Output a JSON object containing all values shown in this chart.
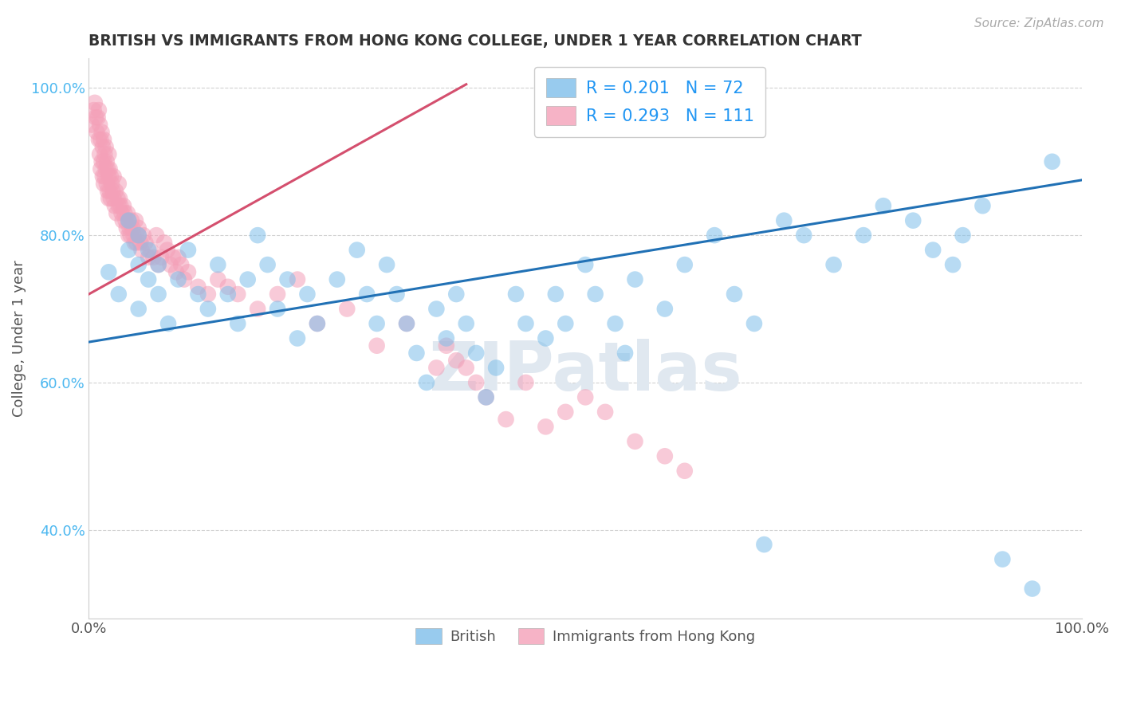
{
  "title": "BRITISH VS IMMIGRANTS FROM HONG KONG COLLEGE, UNDER 1 YEAR CORRELATION CHART",
  "source_text": "Source: ZipAtlas.com",
  "ylabel": "College, Under 1 year",
  "x_min": 0.0,
  "x_max": 1.0,
  "y_min": 0.28,
  "y_max": 1.04,
  "y_ticks": [
    0.4,
    0.6,
    0.8,
    1.0
  ],
  "y_tick_labels": [
    "40.0%",
    "60.0%",
    "80.0%",
    "100.0%"
  ],
  "british_R": 0.201,
  "british_N": 72,
  "hk_R": 0.293,
  "hk_N": 111,
  "blue_color": "#7fbfea",
  "pink_color": "#f4a0b8",
  "blue_line_color": "#2171b5",
  "pink_line_color": "#d44f6e",
  "legend_R_color": "#2196F3",
  "background_color": "#ffffff",
  "grid_color": "#cccccc",
  "blue_line_x0": 0.0,
  "blue_line_y0": 0.655,
  "blue_line_x1": 1.0,
  "blue_line_y1": 0.875,
  "pink_line_x0": 0.0,
  "pink_line_y0": 0.72,
  "pink_line_x1": 0.38,
  "pink_line_y1": 1.005,
  "watermark_text": "ZIPatlas",
  "watermark_color": "#e0e8f0",
  "british_x": [
    0.02,
    0.03,
    0.04,
    0.04,
    0.05,
    0.05,
    0.05,
    0.06,
    0.06,
    0.07,
    0.07,
    0.08,
    0.09,
    0.1,
    0.11,
    0.12,
    0.13,
    0.14,
    0.15,
    0.16,
    0.17,
    0.18,
    0.19,
    0.2,
    0.21,
    0.22,
    0.23,
    0.25,
    0.27,
    0.28,
    0.29,
    0.3,
    0.31,
    0.32,
    0.33,
    0.34,
    0.35,
    0.36,
    0.37,
    0.38,
    0.39,
    0.4,
    0.41,
    0.43,
    0.44,
    0.46,
    0.47,
    0.48,
    0.5,
    0.51,
    0.53,
    0.54,
    0.55,
    0.58,
    0.6,
    0.63,
    0.65,
    0.67,
    0.68,
    0.7,
    0.72,
    0.75,
    0.78,
    0.8,
    0.83,
    0.85,
    0.87,
    0.88,
    0.9,
    0.92,
    0.95,
    0.97
  ],
  "british_y": [
    0.75,
    0.72,
    0.78,
    0.82,
    0.8,
    0.76,
    0.7,
    0.74,
    0.78,
    0.72,
    0.76,
    0.68,
    0.74,
    0.78,
    0.72,
    0.7,
    0.76,
    0.72,
    0.68,
    0.74,
    0.8,
    0.76,
    0.7,
    0.74,
    0.66,
    0.72,
    0.68,
    0.74,
    0.78,
    0.72,
    0.68,
    0.76,
    0.72,
    0.68,
    0.64,
    0.6,
    0.7,
    0.66,
    0.72,
    0.68,
    0.64,
    0.58,
    0.62,
    0.72,
    0.68,
    0.66,
    0.72,
    0.68,
    0.76,
    0.72,
    0.68,
    0.64,
    0.74,
    0.7,
    0.76,
    0.8,
    0.72,
    0.68,
    0.38,
    0.82,
    0.8,
    0.76,
    0.8,
    0.84,
    0.82,
    0.78,
    0.76,
    0.8,
    0.84,
    0.36,
    0.32,
    0.9
  ],
  "hk_x": [
    0.003,
    0.005,
    0.006,
    0.007,
    0.008,
    0.009,
    0.01,
    0.01,
    0.011,
    0.011,
    0.012,
    0.012,
    0.013,
    0.013,
    0.014,
    0.014,
    0.015,
    0.015,
    0.015,
    0.016,
    0.016,
    0.017,
    0.017,
    0.018,
    0.018,
    0.019,
    0.019,
    0.02,
    0.02,
    0.02,
    0.021,
    0.021,
    0.022,
    0.022,
    0.023,
    0.024,
    0.025,
    0.025,
    0.026,
    0.027,
    0.028,
    0.029,
    0.03,
    0.03,
    0.031,
    0.032,
    0.033,
    0.034,
    0.035,
    0.036,
    0.037,
    0.038,
    0.039,
    0.04,
    0.04,
    0.041,
    0.042,
    0.043,
    0.044,
    0.045,
    0.046,
    0.047,
    0.048,
    0.05,
    0.05,
    0.052,
    0.053,
    0.055,
    0.057,
    0.06,
    0.062,
    0.065,
    0.068,
    0.07,
    0.073,
    0.076,
    0.079,
    0.082,
    0.085,
    0.088,
    0.09,
    0.093,
    0.096,
    0.1,
    0.11,
    0.12,
    0.13,
    0.14,
    0.15,
    0.17,
    0.19,
    0.21,
    0.23,
    0.26,
    0.29,
    0.32,
    0.35,
    0.36,
    0.37,
    0.38,
    0.39,
    0.4,
    0.42,
    0.44,
    0.46,
    0.48,
    0.5,
    0.52,
    0.55,
    0.58,
    0.6
  ],
  "hk_y": [
    0.95,
    0.97,
    0.98,
    0.96,
    0.94,
    0.96,
    0.97,
    0.93,
    0.95,
    0.91,
    0.93,
    0.89,
    0.94,
    0.9,
    0.92,
    0.88,
    0.93,
    0.9,
    0.87,
    0.91,
    0.88,
    0.92,
    0.89,
    0.9,
    0.87,
    0.89,
    0.86,
    0.91,
    0.88,
    0.85,
    0.89,
    0.86,
    0.88,
    0.85,
    0.87,
    0.86,
    0.88,
    0.85,
    0.84,
    0.86,
    0.83,
    0.85,
    0.87,
    0.84,
    0.85,
    0.84,
    0.83,
    0.82,
    0.84,
    0.83,
    0.82,
    0.81,
    0.83,
    0.8,
    0.82,
    0.81,
    0.8,
    0.82,
    0.81,
    0.8,
    0.79,
    0.82,
    0.79,
    0.8,
    0.81,
    0.79,
    0.78,
    0.8,
    0.79,
    0.77,
    0.78,
    0.77,
    0.8,
    0.76,
    0.77,
    0.79,
    0.78,
    0.76,
    0.77,
    0.75,
    0.77,
    0.76,
    0.74,
    0.75,
    0.73,
    0.72,
    0.74,
    0.73,
    0.72,
    0.7,
    0.72,
    0.74,
    0.68,
    0.7,
    0.65,
    0.68,
    0.62,
    0.65,
    0.63,
    0.62,
    0.6,
    0.58,
    0.55,
    0.6,
    0.54,
    0.56,
    0.58,
    0.56,
    0.52,
    0.5,
    0.48
  ]
}
